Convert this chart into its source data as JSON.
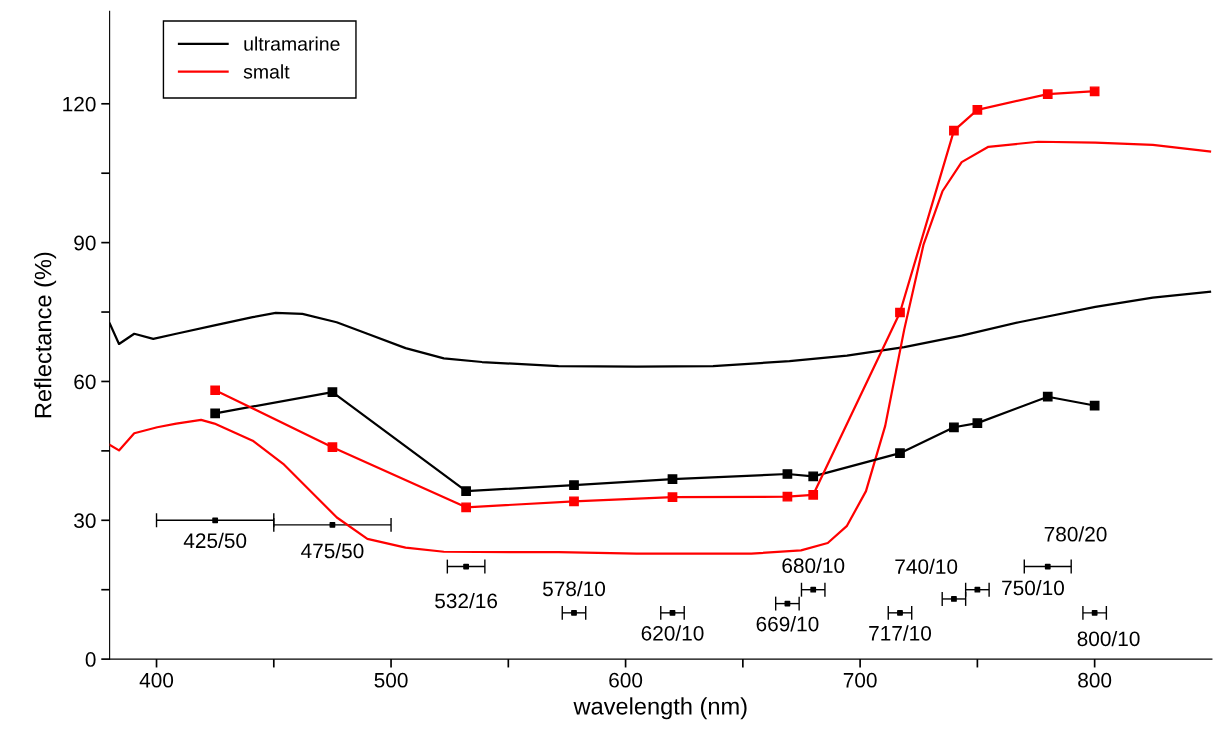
{
  "chart_data": {
    "type": "line",
    "xlabel": "wavelength (nm)",
    "ylabel": "Reflectance (%)",
    "xlim": [
      380,
      850
    ],
    "ylim": [
      0,
      140
    ],
    "xticks": [
      400,
      {
        "value": 450,
        "label": null
      },
      500,
      {
        "value": 550,
        "label": null
      },
      600,
      {
        "value": 650,
        "label": null
      },
      700,
      {
        "value": 750,
        "label": null
      },
      800
    ],
    "yticks": [
      0,
      {
        "value": 15,
        "label": null
      },
      30,
      {
        "value": 45,
        "label": null
      },
      60,
      {
        "value": 75,
        "label": null
      },
      90,
      {
        "value": 105,
        "label": null
      },
      120
    ],
    "grid": false,
    "legend": "top left",
    "series": [
      {
        "name": "ultramarine",
        "color": "#000000",
        "marker": "none",
        "x": [
          380.1,
          384,
          390.5,
          398.6,
          408.4,
          424.7,
          441,
          450.8,
          462.2,
          476.8,
          489.9,
          506.2,
          522.5,
          538.8,
          571.4,
          604.7,
          637.3,
          669.9,
          694.4,
          718.8,
          743.3,
          767.7,
          800.3,
          824.8,
          849.2
        ],
        "values": [
          72.5,
          68.1,
          70.3,
          69.2,
          70.3,
          72.1,
          73.9,
          74.8,
          74.6,
          72.8,
          70.3,
          67.2,
          65.0,
          64.2,
          63.3,
          63.2,
          63.3,
          64.4,
          65.6,
          67.4,
          69.9,
          72.8,
          76.1,
          78.1,
          79.4
        ]
      },
      {
        "name": "smalt",
        "color": "#ff0000",
        "marker": "none",
        "x": [
          380.1,
          384,
          390.5,
          400.3,
          408.4,
          419,
          424.7,
          441,
          454,
          465.5,
          476.9,
          489.9,
          506.2,
          522.5,
          571.4,
          604.7,
          653.6,
          674.8,
          686.2,
          694.4,
          702.5,
          710.7,
          718.8,
          727,
          735.1,
          743.3,
          754.7,
          775.9,
          800.3,
          824.8,
          849.2
        ],
        "values": [
          46.3,
          45.1,
          48.8,
          50.1,
          50.9,
          51.7,
          50.9,
          47.2,
          42.2,
          36.4,
          30.6,
          26.0,
          24.1,
          23.2,
          23.1,
          22.8,
          22.8,
          23.5,
          25.1,
          28.8,
          36.3,
          50.4,
          71.2,
          89.5,
          101.1,
          107.4,
          110.7,
          111.8,
          111.6,
          111.1,
          109.7
        ]
      },
      {
        "color": "#000000",
        "marker": "square",
        "x": [
          425,
          475,
          532,
          578,
          620,
          669,
          680,
          717,
          740,
          750,
          780,
          800
        ],
        "values": [
          53.1,
          57.7,
          36.3,
          37.6,
          38.9,
          40.0,
          39.5,
          44.5,
          50.1,
          51.0,
          56.7,
          54.8
        ]
      },
      {
        "color": "#ff0000",
        "marker": "square",
        "x": [
          425,
          475,
          532,
          578,
          620,
          669,
          680,
          717,
          740,
          750,
          780,
          800
        ],
        "values": [
          58.1,
          45.8,
          32.8,
          34.1,
          35.0,
          35.1,
          35.5,
          74.9,
          114.2,
          118.7,
          122.1,
          122.7
        ]
      },
      {
        "type": "scatter",
        "color": "#000000",
        "marker": "square",
        "x": [
          425,
          475,
          532,
          578,
          620,
          669,
          680,
          717,
          740,
          750,
          780,
          800
        ],
        "values": [
          30,
          29,
          20,
          10,
          10,
          12,
          15,
          10,
          13,
          15,
          20,
          10
        ],
        "xerrors": [
          25,
          25,
          8,
          5,
          5,
          5,
          5,
          5,
          5,
          5,
          10,
          5
        ]
      }
    ],
    "annotations": [
      {
        "text": "425/50",
        "x": 425,
        "y": 30
      },
      {
        "text": "475/50",
        "x": 475,
        "y": 29
      },
      {
        "text": "532/16",
        "x": 532,
        "y": 20
      },
      {
        "text": "578/10",
        "x": 578,
        "y": 10
      },
      {
        "text": "620/10",
        "x": 620,
        "y": 10
      },
      {
        "text": "669/10",
        "x": 669,
        "y": 12
      },
      {
        "text": "680/10",
        "x": 680,
        "y": 15
      },
      {
        "text": "717/10",
        "x": 717,
        "y": 10
      },
      {
        "text": "740/10",
        "x": 740,
        "y": 13
      },
      {
        "text": "750/10",
        "x": 750,
        "y": 15
      },
      {
        "text": "780/20",
        "x": 780,
        "y": 20
      },
      {
        "text": "800/10",
        "x": 800,
        "y": 10
      }
    ]
  }
}
